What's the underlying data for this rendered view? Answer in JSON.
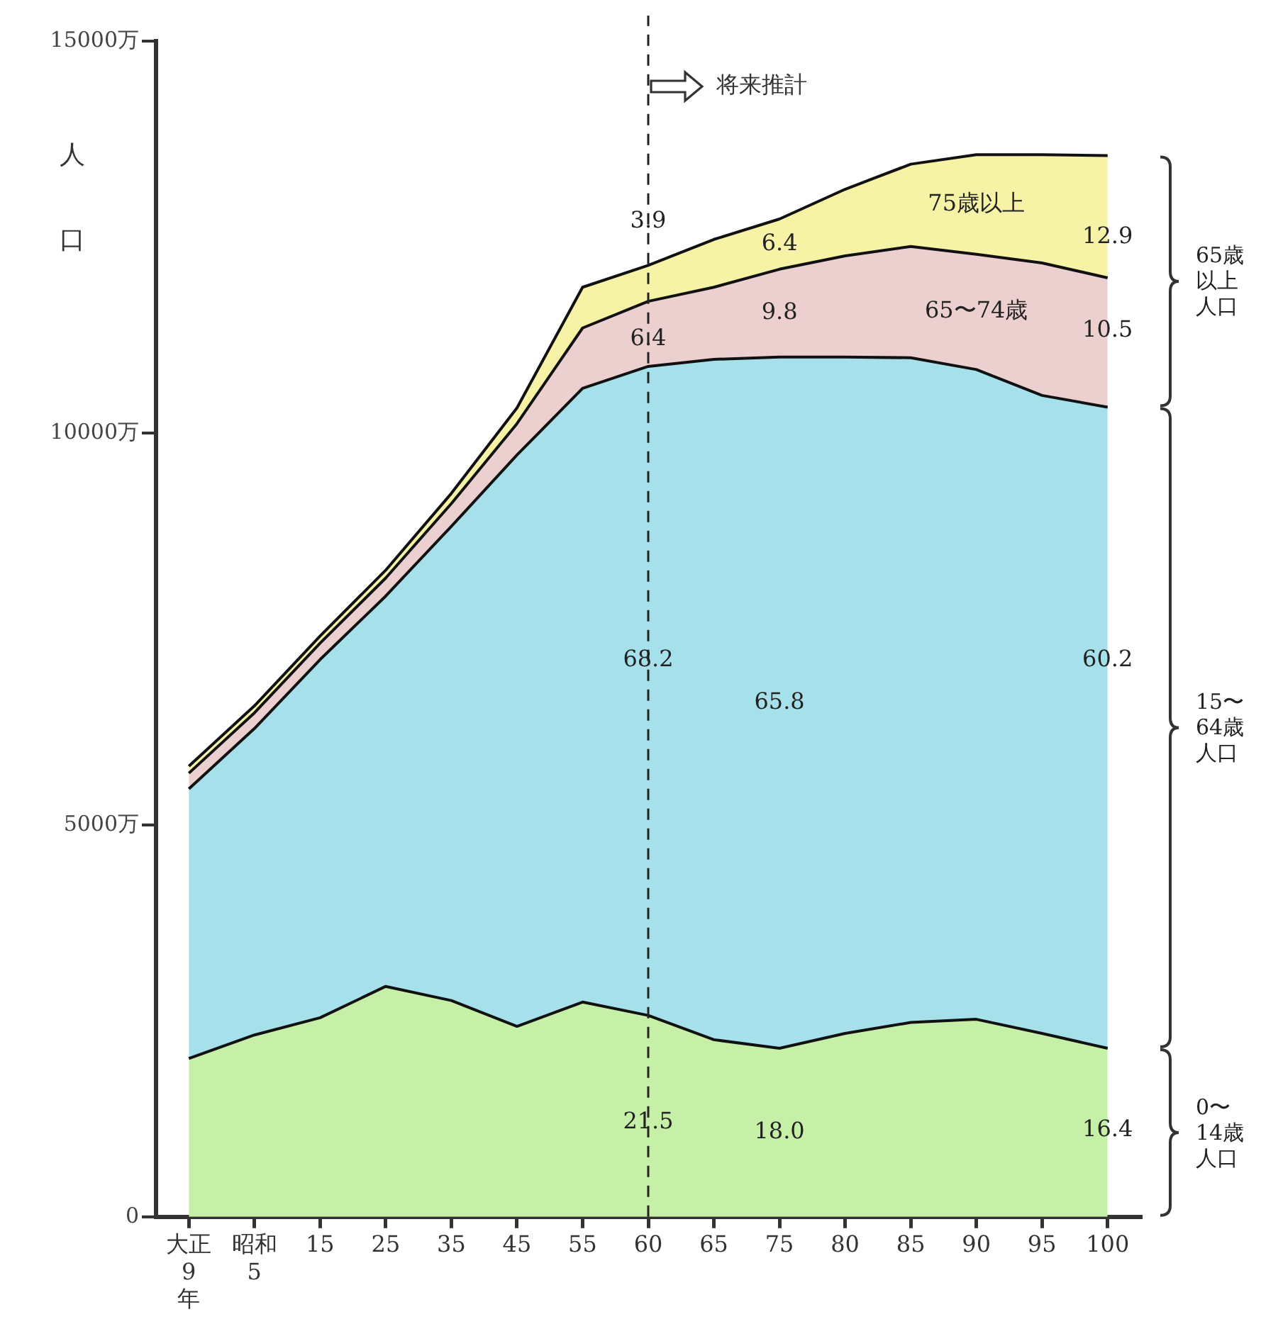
{
  "chart_data": {
    "type": "area",
    "stacked": true,
    "ylabel": "人口",
    "legend": false,
    "grid": false,
    "categories": [
      "大正\n9\n年",
      "昭和\n5",
      "15",
      "25",
      "35",
      "45",
      "55",
      "60",
      "65",
      "75",
      "80",
      "85",
      "90",
      "95",
      "100"
    ],
    "ylim": [
      0,
      15000
    ],
    "yticks": [
      0,
      {
        "value": 5000,
        "label": "5000万"
      },
      {
        "value": 10000,
        "label": "10000万"
      },
      {
        "value": 15000,
        "label": "15000万"
      }
    ],
    "series": [
      {
        "color": "#c6f0a8",
        "values": [
          2020,
          2320,
          2540,
          2940,
          2760,
          2430,
          2740,
          2570,
          2260,
          2150,
          2340,
          2480,
          2520,
          2340,
          2150
        ]
      },
      {
        "color": "#a6e0ea",
        "values": [
          3440,
          3910,
          4570,
          4980,
          6050,
          7290,
          7830,
          8280,
          8680,
          8820,
          8630,
          8480,
          8290,
          8140,
          8180
        ]
      },
      {
        "name": "65〜74歳",
        "color": "#ecd0d0",
        "values": [
          200,
          200,
          210,
          230,
          290,
          400,
          770,
          830,
          920,
          1120,
          1290,
          1420,
          1470,
          1690,
          1650
        ]
      },
      {
        "name": "75歳以上",
        "color": "#f6f2a6",
        "values": [
          90,
          90,
          90,
          100,
          130,
          200,
          520,
          460,
          610,
          640,
          850,
          1050,
          1270,
          1380,
          1560
        ]
      }
    ],
    "ref_lines": [
      {
        "axis": "x",
        "value": "60",
        "label": "将来推計",
        "line_style": "dashed"
      }
    ],
    "annotations": [
      "0〜14歳人口",
      "15〜64歳人口",
      "65歳以上人口",
      "6.4",
      "9.8",
      "65.8",
      "18.0",
      {
        "text": "3.9",
        "x": "60",
        "y": 12700
      },
      {
        "text": "12.9",
        "x": "100",
        "y": 12500
      },
      {
        "text": "6.4",
        "x": "60",
        "y": 11200
      },
      {
        "text": "10.5",
        "x": "100",
        "y": 11300
      },
      {
        "text": "68.2",
        "x": "60",
        "y": 7100
      },
      {
        "text": "60.2",
        "x": "100",
        "y": 7100
      },
      {
        "text": "21.5",
        "x": "60",
        "y": 1200
      },
      {
        "text": "16.4",
        "x": "100",
        "y": 1100
      }
    ]
  }
}
